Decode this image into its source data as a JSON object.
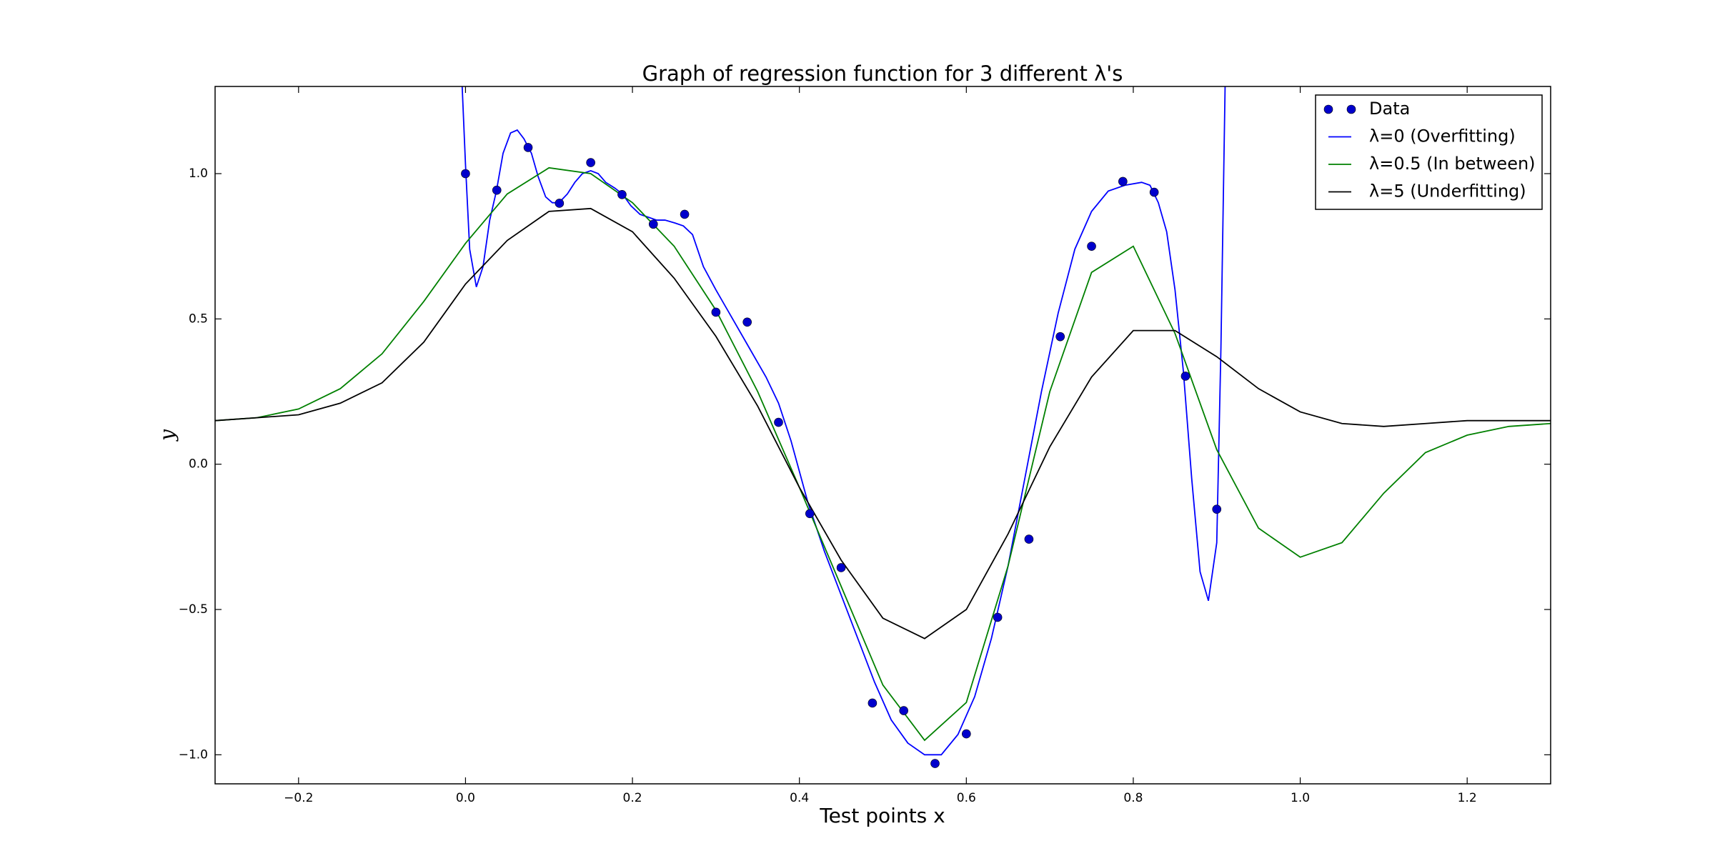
{
  "chart_data": {
    "type": "line",
    "title": "Graph of regression function for 3 different λ's",
    "xlabel": "Test points x",
    "ylabel": "y",
    "xlim": [
      -0.3,
      1.3
    ],
    "ylim": [
      -1.1,
      1.3
    ],
    "xticks": [
      {
        "value": -0.2,
        "label": "−0.2"
      },
      {
        "value": 0,
        "label": "0.0"
      },
      0.2,
      0.4,
      0.6,
      0.8,
      {
        "value": 1,
        "label": "1.0"
      },
      1.2
    ],
    "yticks": [
      {
        "value": -1,
        "label": "−1.0"
      },
      {
        "value": -0.5,
        "label": "−0.5"
      },
      {
        "value": 0,
        "label": "0.0"
      },
      0.5,
      {
        "value": 1,
        "label": "1.0"
      }
    ],
    "legend": "upper right",
    "grid": false,
    "scatter": {
      "name": "Data",
      "color": "#0000cc",
      "x": [
        0,
        0.0375,
        0.075,
        0.1125,
        0.15,
        0.1875,
        0.225,
        0.2625,
        0.3,
        0.3375,
        0.375,
        0.4125,
        0.45,
        0.4875,
        0.525,
        0.5625,
        0.6,
        0.6375,
        0.675,
        0.7125,
        0.75,
        0.7875,
        0.825,
        0.8625,
        0.9
      ],
      "values": [
        1.0,
        0.943,
        1.09,
        0.898,
        1.038,
        0.928,
        0.826,
        0.86,
        0.523,
        0.489,
        0.144,
        -0.17,
        -0.356,
        -0.822,
        -0.848,
        -1.03,
        -0.928,
        -0.527,
        -0.258,
        0.439,
        0.75,
        0.973,
        0.936,
        0.303,
        -0.155
      ]
    },
    "series": [
      {
        "name": "λ=0 (Overfitting)",
        "color": "#0000ff",
        "x": [
          -0.004,
          0,
          0.005,
          0.013,
          0.021,
          0.029,
          0.037,
          0.045,
          0.054,
          0.062,
          0.07,
          0.079,
          0.087,
          0.096,
          0.104,
          0.112,
          0.122,
          0.131,
          0.14,
          0.15,
          0.159,
          0.168,
          0.179,
          0.188,
          0.198,
          0.209,
          0.219,
          0.229,
          0.239,
          0.251,
          0.261,
          0.272,
          0.285,
          0.3,
          0.32,
          0.34,
          0.36,
          0.375,
          0.39,
          0.41,
          0.43,
          0.45,
          0.47,
          0.49,
          0.51,
          0.53,
          0.55,
          0.57,
          0.59,
          0.61,
          0.63,
          0.65,
          0.67,
          0.69,
          0.71,
          0.73,
          0.75,
          0.77,
          0.79,
          0.81,
          0.82,
          0.83,
          0.84,
          0.85,
          0.86,
          0.87,
          0.88,
          0.89,
          0.9,
          0.905,
          0.91
        ],
        "values": [
          1.3,
          1.03,
          0.74,
          0.61,
          0.68,
          0.84,
          0.94,
          1.07,
          1.14,
          1.15,
          1.12,
          1.07,
          0.99,
          0.92,
          0.9,
          0.9,
          0.93,
          0.97,
          1.0,
          1.01,
          1.0,
          0.97,
          0.95,
          0.93,
          0.89,
          0.86,
          0.85,
          0.84,
          0.84,
          0.83,
          0.82,
          0.79,
          0.68,
          0.6,
          0.5,
          0.4,
          0.3,
          0.21,
          0.08,
          -0.13,
          -0.3,
          -0.45,
          -0.6,
          -0.75,
          -0.88,
          -0.96,
          -1.0,
          -1.0,
          -0.93,
          -0.8,
          -0.6,
          -0.35,
          -0.05,
          0.25,
          0.52,
          0.74,
          0.87,
          0.94,
          0.96,
          0.97,
          0.96,
          0.9,
          0.8,
          0.6,
          0.32,
          -0.05,
          -0.37,
          -0.47,
          -0.27,
          0.4,
          1.3
        ]
      },
      {
        "name": "λ=0.5 (In between)",
        "color": "#008000",
        "x": [
          -0.3,
          -0.25,
          -0.2,
          -0.15,
          -0.1,
          -0.05,
          0,
          0.05,
          0.1,
          0.15,
          0.2,
          0.25,
          0.3,
          0.35,
          0.4,
          0.45,
          0.5,
          0.55,
          0.6,
          0.65,
          0.7,
          0.75,
          0.8,
          0.85,
          0.9,
          0.95,
          1.0,
          1.05,
          1.1,
          1.15,
          1.2,
          1.25,
          1.3
        ],
        "values": [
          0.15,
          0.16,
          0.19,
          0.26,
          0.38,
          0.56,
          0.76,
          0.93,
          1.02,
          1.0,
          0.9,
          0.75,
          0.53,
          0.25,
          -0.08,
          -0.42,
          -0.76,
          -0.95,
          -0.82,
          -0.35,
          0.25,
          0.66,
          0.75,
          0.45,
          0.05,
          -0.22,
          -0.32,
          -0.27,
          -0.1,
          0.04,
          0.1,
          0.13,
          0.14
        ]
      },
      {
        "name": "λ=5 (Underfitting)",
        "color": "#000000",
        "x": [
          -0.3,
          -0.25,
          -0.2,
          -0.15,
          -0.1,
          -0.05,
          0,
          0.05,
          0.1,
          0.15,
          0.2,
          0.25,
          0.3,
          0.35,
          0.4,
          0.45,
          0.5,
          0.55,
          0.6,
          0.65,
          0.7,
          0.75,
          0.8,
          0.85,
          0.9,
          0.95,
          1.0,
          1.05,
          1.1,
          1.15,
          1.2,
          1.25,
          1.3
        ],
        "values": [
          0.15,
          0.16,
          0.17,
          0.21,
          0.28,
          0.42,
          0.62,
          0.77,
          0.87,
          0.88,
          0.8,
          0.64,
          0.44,
          0.2,
          -0.08,
          -0.33,
          -0.53,
          -0.6,
          -0.5,
          -0.24,
          0.06,
          0.3,
          0.46,
          0.46,
          0.37,
          0.26,
          0.18,
          0.14,
          0.13,
          0.14,
          0.15,
          0.15,
          0.15
        ]
      }
    ]
  }
}
